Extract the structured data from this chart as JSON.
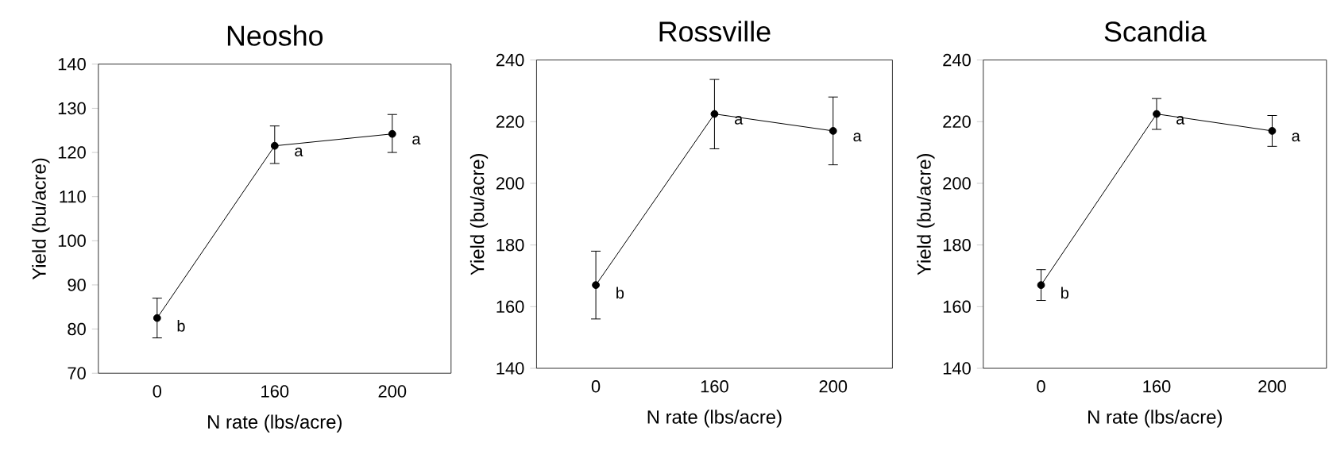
{
  "chart_data": [
    {
      "type": "line",
      "title": "Neosho",
      "xlabel": "N rate (lbs/acre)",
      "ylabel": "Yield (bu/acre)",
      "categories": [
        "0",
        "160",
        "200"
      ],
      "values": [
        82.5,
        121.5,
        124.2
      ],
      "errors": [
        [
          78,
          87
        ],
        [
          117.5,
          126
        ],
        [
          120,
          128.6
        ]
      ],
      "color": "#000000",
      "marker": "circle",
      "line_style": "solid",
      "ylim": [
        70,
        140
      ],
      "yticks": [
        70,
        80,
        90,
        100,
        110,
        120,
        130,
        140
      ],
      "annotations": [
        {
          "text": "b",
          "x": "0",
          "y": 82.5
        },
        {
          "text": "a",
          "x": "160",
          "y": 121.5
        },
        {
          "text": "a",
          "x": "200",
          "y": 124.2
        }
      ]
    },
    {
      "type": "line",
      "title": "Rossville",
      "xlabel": "N rate (lbs/acre)",
      "ylabel": "Yield (bu/acre)",
      "categories": [
        "0",
        "160",
        "200"
      ],
      "values": [
        167,
        222.5,
        217
      ],
      "errors": [
        [
          156,
          178
        ],
        [
          211.2,
          233.7
        ],
        [
          206,
          228
        ]
      ],
      "color": "#000000",
      "marker": "circle",
      "line_style": "solid",
      "ylim": [
        140,
        240
      ],
      "yticks": [
        140,
        160,
        180,
        200,
        220,
        240
      ],
      "annotations": [
        {
          "text": "b",
          "x": "0",
          "y": 167
        },
        {
          "text": "a",
          "x": "160",
          "y": 222.5
        },
        {
          "text": "a",
          "x": "200",
          "y": 217
        }
      ]
    },
    {
      "type": "line",
      "title": "Scandia",
      "xlabel": "N rate (lbs/acre)",
      "ylabel": "Yield (bu/acre)",
      "categories": [
        "0",
        "160",
        "200"
      ],
      "values": [
        167,
        222.5,
        217
      ],
      "errors": [
        [
          162,
          172
        ],
        [
          217.5,
          227.5
        ],
        [
          212,
          222
        ]
      ],
      "color": "#000000",
      "marker": "circle",
      "line_style": "solid",
      "ylim": [
        140,
        240
      ],
      "yticks": [
        140,
        160,
        180,
        200,
        220,
        240
      ],
      "annotations": [
        {
          "text": "b",
          "x": "0",
          "y": 167
        },
        {
          "text": "a",
          "x": "160",
          "y": 222.5
        },
        {
          "text": "a",
          "x": "200",
          "y": 217
        }
      ]
    }
  ]
}
